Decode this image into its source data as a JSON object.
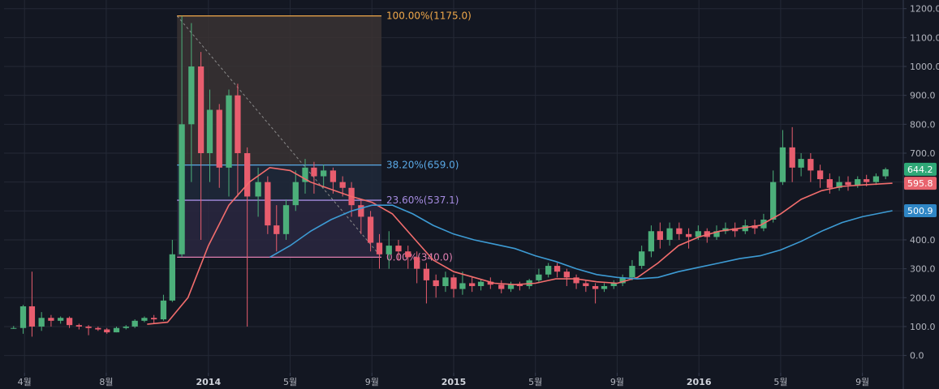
{
  "colors": {
    "background": "#131722",
    "grid": "#242936",
    "up": "#4caf7a",
    "down": "#e85d6e",
    "ma_short": "#f26d6d",
    "ma_long": "#3d9bd4",
    "fib_100": "#f0a84a",
    "fib_382": "#5aa9e6",
    "fib_236": "#a58be0",
    "fib_0": "#e07fb1",
    "tag_price": "#2fa877",
    "tag_ma_short": "#e8646e",
    "tag_ma_long": "#2f86c5"
  },
  "chart_data": {
    "type": "candlestick",
    "y_axis": {
      "ticks": [
        "0.0",
        "100.0",
        "200.0",
        "300.0",
        "400.0",
        "500.0",
        "600.0",
        "700.0",
        "800.0",
        "900.0",
        "1000.0",
        "1100.0",
        "1200.0"
      ],
      "range": [
        -60,
        1230
      ]
    },
    "x_axis": {
      "ticks": [
        {
          "label": "4월",
          "bold": false
        },
        {
          "label": "8월",
          "bold": false
        },
        {
          "label": "2014",
          "bold": true
        },
        {
          "label": "5월",
          "bold": false
        },
        {
          "label": "9월",
          "bold": false
        },
        {
          "label": "2015",
          "bold": true
        },
        {
          "label": "5월",
          "bold": false
        },
        {
          "label": "9월",
          "bold": false
        },
        {
          "label": "2016",
          "bold": true
        },
        {
          "label": "5월",
          "bold": false
        },
        {
          "label": "9월",
          "bold": false
        }
      ],
      "range_months": [
        "2013-03",
        "2016-10"
      ]
    },
    "fibonacci": {
      "start_month": "2013-11.5",
      "end_month": "2014-09.5",
      "levels": [
        {
          "label": "100.00%(1175.0)",
          "value": 1175.0,
          "color_key": "fib_100"
        },
        {
          "label": "38.20%(659.0)",
          "value": 659.0,
          "color_key": "fib_382"
        },
        {
          "label": "23.60%(537.1)",
          "value": 537.1,
          "color_key": "fib_236"
        },
        {
          "label": "0.00%(340.0)",
          "value": 340.0,
          "color_key": "fib_0"
        }
      ]
    },
    "price_tags": [
      {
        "label": "644.2",
        "value": 644.2,
        "color_key": "tag_price"
      },
      {
        "label": "595.8",
        "value": 595.8,
        "color_key": "tag_ma_short"
      },
      {
        "label": "500.9",
        "value": 500.9,
        "color_key": "tag_ma_long"
      }
    ],
    "series": [
      {
        "name": "price",
        "type": "candlestick",
        "points": [
          [
            "2013-03-15",
            95,
            95,
            102,
            92
          ],
          [
            "2013-03-29",
            95,
            170,
            175,
            75
          ],
          [
            "2013-04-12",
            170,
            100,
            290,
            65
          ],
          [
            "2013-04-26",
            100,
            130,
            150,
            85
          ],
          [
            "2013-05-10",
            130,
            120,
            140,
            100
          ],
          [
            "2013-05-24",
            120,
            130,
            135,
            110
          ],
          [
            "2013-06-07",
            130,
            105,
            135,
            95
          ],
          [
            "2013-06-21",
            105,
            100,
            110,
            90
          ],
          [
            "2013-07-05",
            100,
            95,
            105,
            70
          ],
          [
            "2013-07-19",
            95,
            90,
            100,
            85
          ],
          [
            "2013-08-02",
            90,
            80,
            95,
            75
          ],
          [
            "2013-08-16",
            80,
            95,
            100,
            80
          ],
          [
            "2013-08-30",
            95,
            100,
            105,
            90
          ],
          [
            "2013-09-13",
            100,
            120,
            125,
            95
          ],
          [
            "2013-09-27",
            120,
            130,
            135,
            115
          ],
          [
            "2013-10-11",
            130,
            125,
            140,
            110
          ],
          [
            "2013-10-25",
            125,
            190,
            210,
            120
          ],
          [
            "2013-11-08",
            190,
            350,
            400,
            185
          ],
          [
            "2013-11-22",
            350,
            800,
            1175,
            340
          ],
          [
            "2013-12-06",
            800,
            1000,
            1150,
            600
          ],
          [
            "2013-12-20",
            1000,
            700,
            1050,
            400
          ],
          [
            "2014-01-03",
            700,
            850,
            920,
            600
          ],
          [
            "2014-01-17",
            850,
            650,
            870,
            580
          ],
          [
            "2014-01-31",
            650,
            900,
            920,
            550
          ],
          [
            "2014-02-14",
            900,
            700,
            940,
            550
          ],
          [
            "2014-02-28",
            700,
            550,
            720,
            100
          ],
          [
            "2014-03-14",
            550,
            600,
            650,
            480
          ],
          [
            "2014-03-28",
            600,
            450,
            620,
            420
          ],
          [
            "2014-04-11",
            450,
            420,
            520,
            360
          ],
          [
            "2014-04-25",
            420,
            520,
            540,
            400
          ],
          [
            "2014-05-09",
            520,
            600,
            640,
            500
          ],
          [
            "2014-05-23",
            600,
            650,
            680,
            560
          ],
          [
            "2014-06-06",
            650,
            620,
            670,
            560
          ],
          [
            "2014-06-20",
            620,
            640,
            660,
            580
          ],
          [
            "2014-07-04",
            640,
            600,
            650,
            560
          ],
          [
            "2014-07-18",
            600,
            580,
            620,
            550
          ],
          [
            "2014-08-01",
            580,
            520,
            600,
            480
          ],
          [
            "2014-08-15",
            520,
            480,
            540,
            420
          ],
          [
            "2014-08-29",
            480,
            390,
            500,
            360
          ],
          [
            "2014-09-12",
            390,
            350,
            420,
            300
          ],
          [
            "2014-09-26",
            350,
            380,
            430,
            300
          ],
          [
            "2014-10-10",
            380,
            360,
            400,
            330
          ],
          [
            "2014-10-24",
            360,
            340,
            380,
            300
          ],
          [
            "2014-11-07",
            340,
            300,
            360,
            250
          ],
          [
            "2014-11-21",
            300,
            260,
            320,
            180
          ],
          [
            "2014-12-05",
            260,
            240,
            280,
            200
          ],
          [
            "2014-12-19",
            240,
            270,
            290,
            220
          ],
          [
            "2014-12-31",
            270,
            230,
            280,
            200
          ],
          [
            "2015-01-14",
            230,
            250,
            290,
            210
          ],
          [
            "2015-01-28",
            250,
            240,
            270,
            220
          ],
          [
            "2015-02-11",
            240,
            255,
            265,
            225
          ],
          [
            "2015-02-25",
            255,
            245,
            270,
            230
          ],
          [
            "2015-03-11",
            245,
            230,
            260,
            215
          ],
          [
            "2015-03-25",
            230,
            245,
            255,
            220
          ],
          [
            "2015-04-08",
            245,
            240,
            255,
            225
          ],
          [
            "2015-04-22",
            240,
            260,
            265,
            230
          ],
          [
            "2015-05-06",
            260,
            280,
            300,
            250
          ],
          [
            "2015-05-20",
            280,
            310,
            320,
            270
          ],
          [
            "2015-06-03",
            310,
            290,
            320,
            270
          ],
          [
            "2015-06-17",
            290,
            270,
            300,
            240
          ],
          [
            "2015-07-01",
            270,
            250,
            280,
            230
          ],
          [
            "2015-07-15",
            250,
            240,
            260,
            220
          ],
          [
            "2015-07-29",
            240,
            230,
            250,
            180
          ],
          [
            "2015-08-12",
            230,
            240,
            250,
            220
          ],
          [
            "2015-08-26",
            240,
            250,
            260,
            230
          ],
          [
            "2015-09-09",
            250,
            270,
            280,
            240
          ],
          [
            "2015-09-23",
            270,
            310,
            330,
            260
          ],
          [
            "2015-10-07",
            310,
            360,
            380,
            300
          ],
          [
            "2015-10-21",
            360,
            430,
            450,
            340
          ],
          [
            "2015-11-04",
            430,
            400,
            460,
            370
          ],
          [
            "2015-11-18",
            400,
            440,
            460,
            380
          ],
          [
            "2015-12-02",
            440,
            420,
            460,
            400
          ],
          [
            "2015-12-16",
            420,
            410,
            440,
            370
          ],
          [
            "2015-12-30",
            410,
            430,
            450,
            400
          ],
          [
            "2016-01-13",
            430,
            410,
            440,
            390
          ],
          [
            "2016-01-27",
            410,
            430,
            450,
            400
          ],
          [
            "2016-02-10",
            430,
            440,
            460,
            420
          ],
          [
            "2016-02-24",
            440,
            430,
            460,
            410
          ],
          [
            "2016-03-09",
            430,
            450,
            470,
            420
          ],
          [
            "2016-03-23",
            450,
            440,
            470,
            420
          ],
          [
            "2016-04-06",
            440,
            470,
            490,
            430
          ],
          [
            "2016-04-20",
            470,
            600,
            640,
            460
          ],
          [
            "2016-05-04",
            600,
            720,
            780,
            590
          ],
          [
            "2016-05-18",
            720,
            650,
            790,
            600
          ],
          [
            "2016-06-01",
            650,
            680,
            700,
            620
          ],
          [
            "2016-06-15",
            680,
            640,
            700,
            600
          ],
          [
            "2016-06-29",
            640,
            610,
            660,
            580
          ],
          [
            "2016-07-13",
            610,
            580,
            630,
            560
          ],
          [
            "2016-07-27",
            580,
            600,
            620,
            570
          ],
          [
            "2016-08-10",
            600,
            590,
            620,
            570
          ],
          [
            "2016-08-24",
            590,
            610,
            620,
            580
          ],
          [
            "2016-09-07",
            610,
            600,
            625,
            585
          ],
          [
            "2016-09-21",
            600,
            620,
            630,
            590
          ],
          [
            "2016-10-05",
            620,
            644.2,
            650,
            610
          ]
        ]
      },
      {
        "name": "",
        "type": "line",
        "color_key": "ma_short",
        "points": [
          [
            "2013-10-01",
            108
          ],
          [
            "2013-11-01",
            115
          ],
          [
            "2013-12-01",
            200
          ],
          [
            "2014-01-01",
            380
          ],
          [
            "2014-02-01",
            520
          ],
          [
            "2014-03-01",
            600
          ],
          [
            "2014-04-01",
            650
          ],
          [
            "2014-05-01",
            640
          ],
          [
            "2014-06-01",
            600
          ],
          [
            "2014-07-01",
            575
          ],
          [
            "2014-08-01",
            550
          ],
          [
            "2014-09-01",
            530
          ],
          [
            "2014-10-01",
            490
          ],
          [
            "2014-11-01",
            410
          ],
          [
            "2014-12-01",
            330
          ],
          [
            "2015-01-01",
            290
          ],
          [
            "2015-02-01",
            270
          ],
          [
            "2015-03-01",
            250
          ],
          [
            "2015-04-01",
            245
          ],
          [
            "2015-05-01",
            250
          ],
          [
            "2015-06-01",
            265
          ],
          [
            "2015-07-01",
            265
          ],
          [
            "2015-08-01",
            255
          ],
          [
            "2015-09-01",
            250
          ],
          [
            "2015-10-01",
            270
          ],
          [
            "2015-11-01",
            320
          ],
          [
            "2015-12-01",
            380
          ],
          [
            "2016-01-01",
            410
          ],
          [
            "2016-02-01",
            430
          ],
          [
            "2016-03-01",
            440
          ],
          [
            "2016-04-01",
            450
          ],
          [
            "2016-05-01",
            490
          ],
          [
            "2016-06-01",
            540
          ],
          [
            "2016-07-01",
            570
          ],
          [
            "2016-08-01",
            585
          ],
          [
            "2016-09-01",
            590
          ],
          [
            "2016-10-15",
            595.8
          ]
        ]
      },
      {
        "name": "",
        "type": "line",
        "color_key": "ma_long",
        "points": [
          [
            "2014-04-01",
            340
          ],
          [
            "2014-05-01",
            380
          ],
          [
            "2014-06-01",
            430
          ],
          [
            "2014-07-01",
            470
          ],
          [
            "2014-08-01",
            500
          ],
          [
            "2014-09-01",
            520
          ],
          [
            "2014-10-01",
            520
          ],
          [
            "2014-11-01",
            490
          ],
          [
            "2014-12-01",
            450
          ],
          [
            "2015-01-01",
            420
          ],
          [
            "2015-02-01",
            400
          ],
          [
            "2015-03-01",
            385
          ],
          [
            "2015-04-01",
            370
          ],
          [
            "2015-05-01",
            345
          ],
          [
            "2015-06-01",
            325
          ],
          [
            "2015-07-01",
            300
          ],
          [
            "2015-08-01",
            280
          ],
          [
            "2015-09-01",
            270
          ],
          [
            "2015-10-01",
            265
          ],
          [
            "2015-11-01",
            270
          ],
          [
            "2015-12-01",
            290
          ],
          [
            "2016-01-01",
            305
          ],
          [
            "2016-02-01",
            320
          ],
          [
            "2016-03-01",
            335
          ],
          [
            "2016-04-01",
            345
          ],
          [
            "2016-05-01",
            365
          ],
          [
            "2016-06-01",
            395
          ],
          [
            "2016-07-01",
            430
          ],
          [
            "2016-08-01",
            460
          ],
          [
            "2016-09-01",
            480
          ],
          [
            "2016-10-15",
            500.9
          ]
        ]
      }
    ]
  }
}
